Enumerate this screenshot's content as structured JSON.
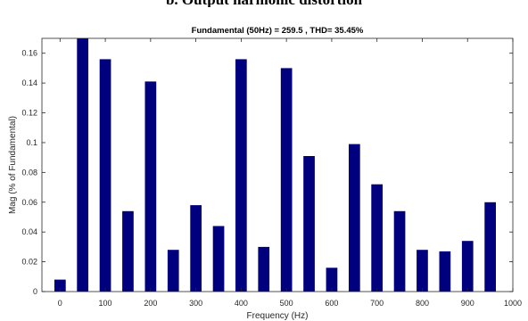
{
  "top_caption": "b. Output harmonic distortion",
  "chart_data": {
    "type": "bar",
    "title": "Fundamental (50Hz) = 259.5 , THD= 35.45%",
    "xlabel": "Frequency (Hz)",
    "ylabel": "Mag (% of Fundamental)",
    "xlim": [
      -40,
      1000
    ],
    "ylim": [
      0,
      0.17
    ],
    "x_ticks": [
      "0",
      "100",
      "200",
      "300",
      "400",
      "500",
      "600",
      "700",
      "800",
      "900",
      "1000"
    ],
    "y_ticks": [
      "0",
      "0.02",
      "0.04",
      "0.06",
      "0.08",
      "0.1",
      "0.12",
      "0.14",
      "0.16"
    ],
    "x": [
      0,
      50,
      100,
      150,
      200,
      250,
      300,
      350,
      400,
      450,
      500,
      550,
      600,
      650,
      700,
      750,
      800,
      850,
      900,
      950
    ],
    "values": [
      0.008,
      0.175,
      0.156,
      0.054,
      0.141,
      0.028,
      0.058,
      0.044,
      0.156,
      0.03,
      0.15,
      0.091,
      0.016,
      0.099,
      0.072,
      0.054,
      0.028,
      0.027,
      0.034,
      0.06
    ],
    "bar_color": "#00007f",
    "grid": false
  }
}
